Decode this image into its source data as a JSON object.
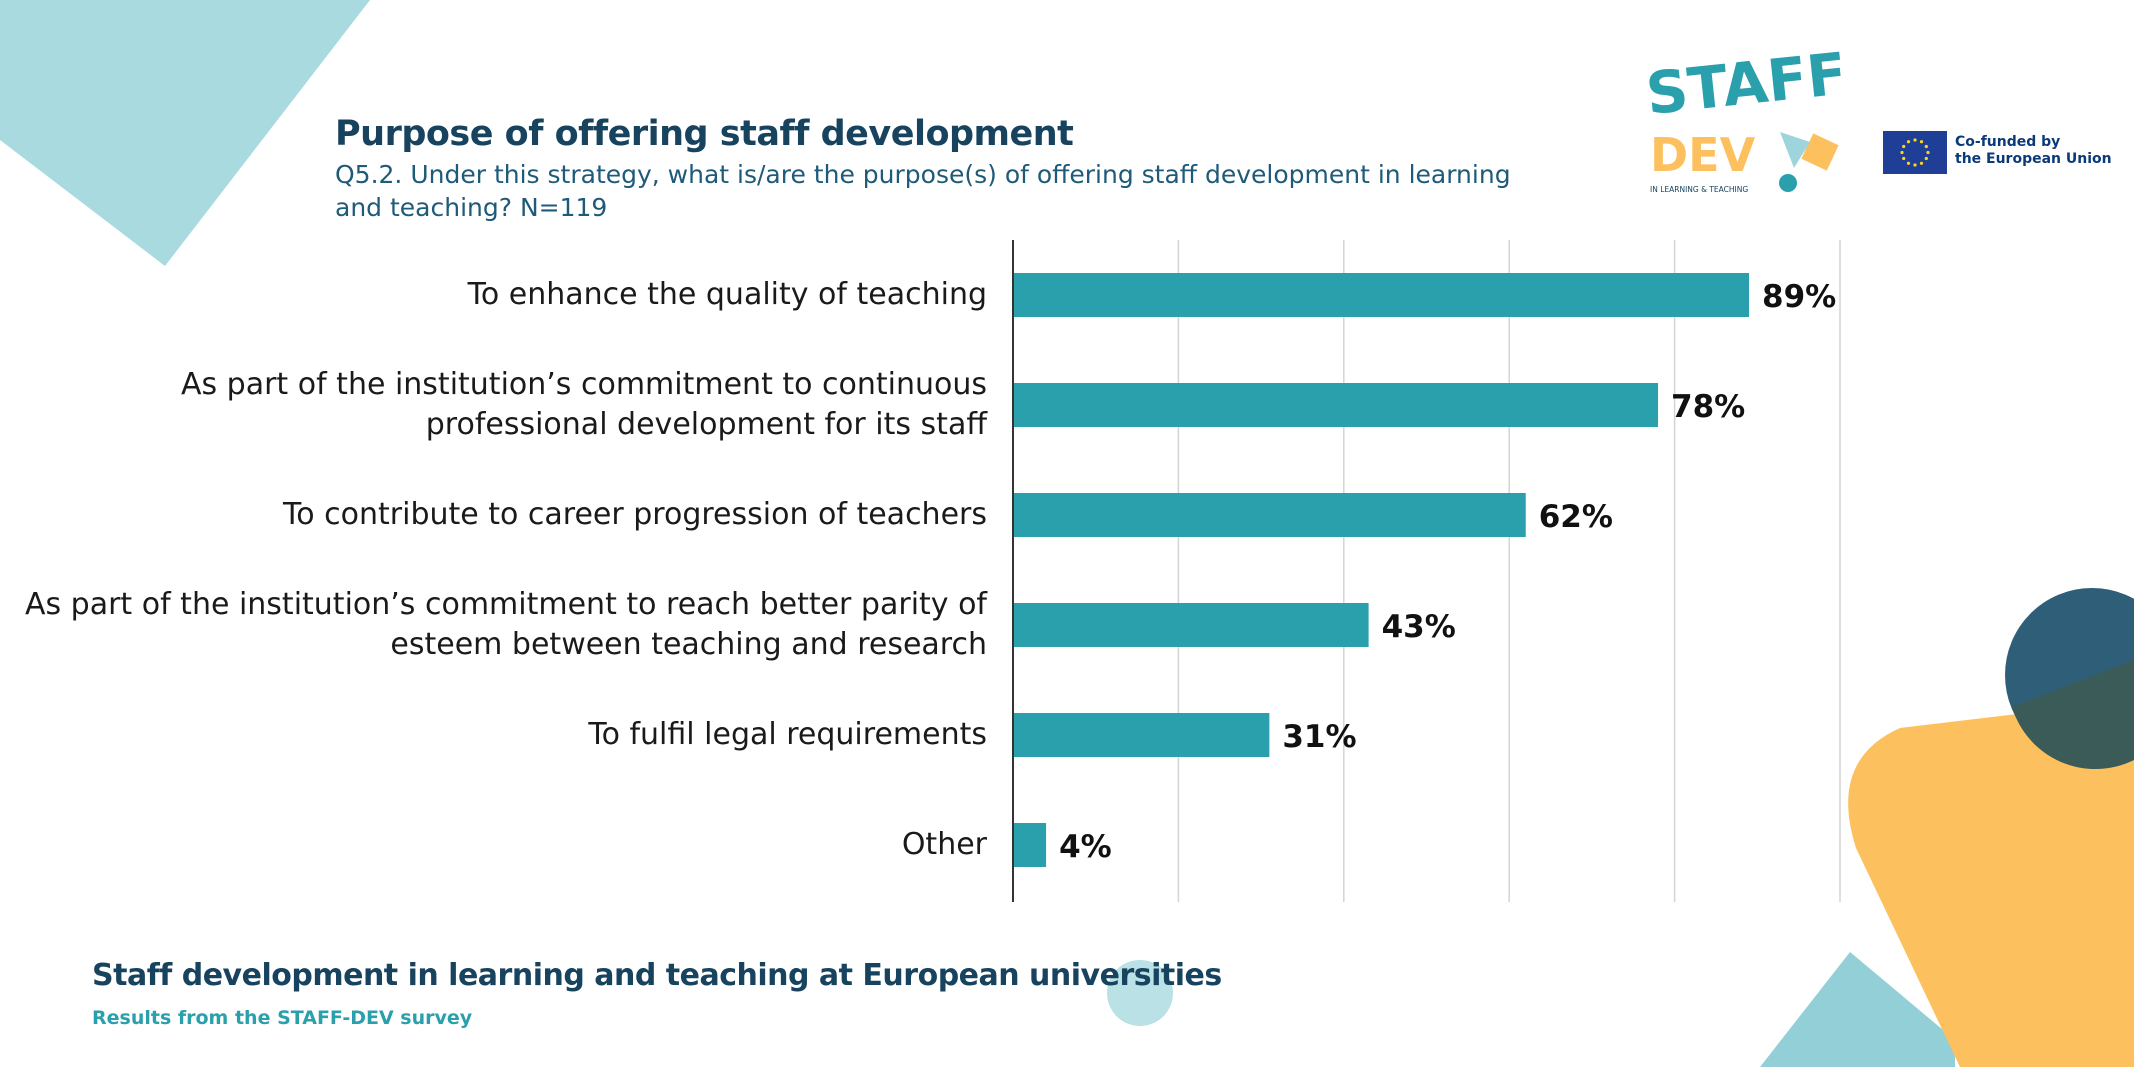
{
  "header": {
    "title": "Purpose of offering staff development",
    "subtitle": "Q5.2. Under this strategy, what is/are the purpose(s) of offering staff development in learning and teaching? N=119"
  },
  "logos": {
    "staff": "STAFF",
    "dev": "DEV",
    "tagline": "IN LEARNING & TEACHING",
    "eu_line1": "Co-funded by",
    "eu_line2": "the European Union"
  },
  "footer": {
    "title": "Staff development in learning and teaching at European universities",
    "subtitle": "Results from the STAFF-DEV survey"
  },
  "colors": {
    "bar": "#2aa0ad",
    "title": "#17435f",
    "accent_light": "#a9dae0",
    "accent_orange": "#fdc05e",
    "accent_dark": "#2f5f78"
  },
  "chart_data": {
    "type": "bar",
    "orientation": "horizontal",
    "categories": [
      "To enhance the quality of teaching",
      "As part of the institution’s commitment to continuous professional development for its staff",
      "To contribute to career progression of teachers",
      "As part of the institution’s commitment to reach better parity of esteem between teaching and research",
      "To fulfil legal requirements",
      "Other"
    ],
    "category_lines": [
      [
        "To enhance the quality of teaching"
      ],
      [
        "As part of the institution’s commitment to continuous",
        "professional development for its staff"
      ],
      [
        "To contribute to career progression of teachers"
      ],
      [
        "As part of the institution’s commitment to reach better parity of",
        "esteem between teaching and research"
      ],
      [
        "To fulfil legal requirements"
      ],
      [
        "Other"
      ]
    ],
    "values": [
      89,
      78,
      62,
      43,
      31,
      4
    ],
    "value_labels": [
      "89%",
      "78%",
      "62%",
      "43%",
      "31%",
      "4%"
    ],
    "unit": "%",
    "xlim": [
      0,
      100
    ],
    "gridlines": [
      20,
      40,
      60,
      80,
      100
    ],
    "grid": true,
    "legend": "none"
  }
}
